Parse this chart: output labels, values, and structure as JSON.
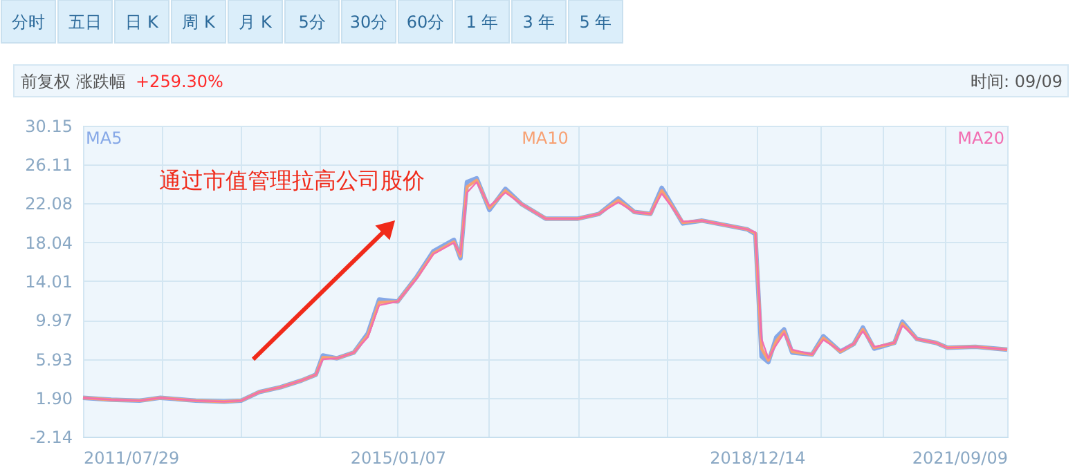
{
  "chart_data": {
    "type": "line",
    "annotations": [
      "分时",
      "五日",
      "日 K",
      "周 K",
      "月 K",
      "5分",
      "30分",
      "60分",
      "1 年",
      "3 年",
      "5 年",
      "前复权 涨跌幅",
      "+259.30%",
      "时间: 09/09",
      "通过市值管理拉高公司股价"
    ],
    "x": [
      "2011-07-29",
      "2011-11-19",
      "2012-03-11",
      "2012-06-03",
      "2012-10-22",
      "2013-02-12",
      "2013-04-21",
      "2013-07-03",
      "2013-09-26",
      "2013-12-19",
      "2014-02-14",
      "2014-03-14",
      "2014-05-09",
      "2014-07-16",
      "2014-09-10",
      "2014-10-25",
      "2015-01-07",
      "2015-03-25",
      "2015-05-29",
      "2015-08-20",
      "2015-09-15",
      "2015-10-11",
      "2015-11-19",
      "2016-01-09",
      "2016-03-13",
      "2016-05-17",
      "2016-08-21",
      "2016-12-28",
      "2017-03-22",
      "2017-06-07",
      "2017-08-10",
      "2017-10-14",
      "2017-11-28",
      "2018-02-20",
      "2018-05-08",
      "2018-11-04",
      "2018-12-07",
      "2019-01-01",
      "2019-01-28",
      "2019-03-01",
      "2019-04-01",
      "2019-05-03",
      "2019-07-22",
      "2019-09-05",
      "2019-11-12",
      "2020-01-05",
      "2020-02-10",
      "2020-03-26",
      "2020-06-15",
      "2020-07-17",
      "2020-09-13",
      "2020-11-29",
      "2021-01-13",
      "2021-05-05",
      "2021-09-09"
    ],
    "series": [
      {
        "name": "MA5",
        "color": "#86a8e7",
        "values": [
          1.9,
          1.7,
          1.6,
          1.9,
          1.6,
          1.5,
          1.6,
          2.5,
          3.0,
          3.7,
          4.3,
          6.3,
          6.0,
          6.6,
          8.6,
          12.1,
          11.9,
          14.5,
          17.1,
          18.3,
          16.4,
          24.3,
          24.7,
          21.4,
          23.6,
          22.0,
          20.5,
          20.5,
          21.0,
          22.6,
          21.2,
          21.0,
          23.7,
          20.0,
          20.3,
          19.4,
          18.9,
          6.2,
          5.6,
          8.2,
          9.0,
          6.6,
          6.4,
          8.3,
          6.7,
          7.5,
          9.2,
          7.0,
          7.6,
          9.8,
          8.0,
          7.6,
          7.1,
          7.2,
          6.9
        ]
      },
      {
        "name": "MA10",
        "color": "#f7a072",
        "values": [
          1.9,
          1.7,
          1.6,
          1.9,
          1.6,
          1.5,
          1.6,
          2.5,
          3.0,
          3.7,
          4.3,
          6.1,
          6.0,
          6.6,
          8.4,
          11.8,
          11.9,
          14.4,
          16.9,
          18.1,
          16.6,
          23.8,
          24.5,
          21.6,
          23.4,
          22.0,
          20.5,
          20.5,
          21.0,
          22.4,
          21.2,
          21.0,
          23.4,
          20.1,
          20.3,
          19.4,
          19.0,
          7.0,
          5.8,
          7.8,
          8.8,
          6.7,
          6.4,
          8.1,
          6.7,
          7.5,
          9.0,
          7.1,
          7.6,
          9.6,
          8.0,
          7.6,
          7.1,
          7.2,
          6.9
        ]
      },
      {
        "name": "MA20",
        "color": "#f26db1",
        "values": [
          1.9,
          1.7,
          1.6,
          1.9,
          1.6,
          1.5,
          1.6,
          2.5,
          3.0,
          3.7,
          4.3,
          5.9,
          6.0,
          6.6,
          8.2,
          11.5,
          11.9,
          14.3,
          16.8,
          18.0,
          16.8,
          23.2,
          24.3,
          21.8,
          23.2,
          22.0,
          20.5,
          20.5,
          21.0,
          22.2,
          21.2,
          21.0,
          23.1,
          20.2,
          20.3,
          19.4,
          19.1,
          8.0,
          6.0,
          7.4,
          8.6,
          6.9,
          6.4,
          7.9,
          6.8,
          7.5,
          8.8,
          7.2,
          7.6,
          9.4,
          8.0,
          7.6,
          7.1,
          7.2,
          6.9
        ]
      }
    ],
    "xlim": [
      "2011-07-29",
      "2021-09-09"
    ],
    "xticks": [
      {
        "value": "2011-07-29",
        "label": "2011/07/29"
      },
      {
        "value": "2012-06-10",
        "label": null
      },
      {
        "value": "2013-04-21",
        "label": null
      },
      {
        "value": "2014-03-03",
        "label": null
      },
      {
        "value": "2015-01-07",
        "label": "2015/01/07"
      },
      {
        "value": "2016-01-03",
        "label": null
      },
      {
        "value": "2016-12-28",
        "label": null
      },
      {
        "value": "2017-12-18",
        "label": null
      },
      {
        "value": "2018-12-14",
        "label": "2018/12/14"
      },
      {
        "value": "2019-08-23",
        "label": null
      },
      {
        "value": "2020-04-27",
        "label": null
      },
      {
        "value": "2021-01-04",
        "label": null
      },
      {
        "value": "2021-09-09",
        "label": "2021/09/09"
      }
    ],
    "ylim": [
      -2.14,
      30.15
    ],
    "yticks": [
      -2.14,
      {
        "value": 1.9,
        "label": "1.90"
      },
      5.93,
      9.97,
      14.01,
      18.04,
      22.08,
      26.11,
      30.15
    ],
    "grid": true,
    "legend": "top",
    "marker": "none",
    "line_style": "solid"
  }
}
